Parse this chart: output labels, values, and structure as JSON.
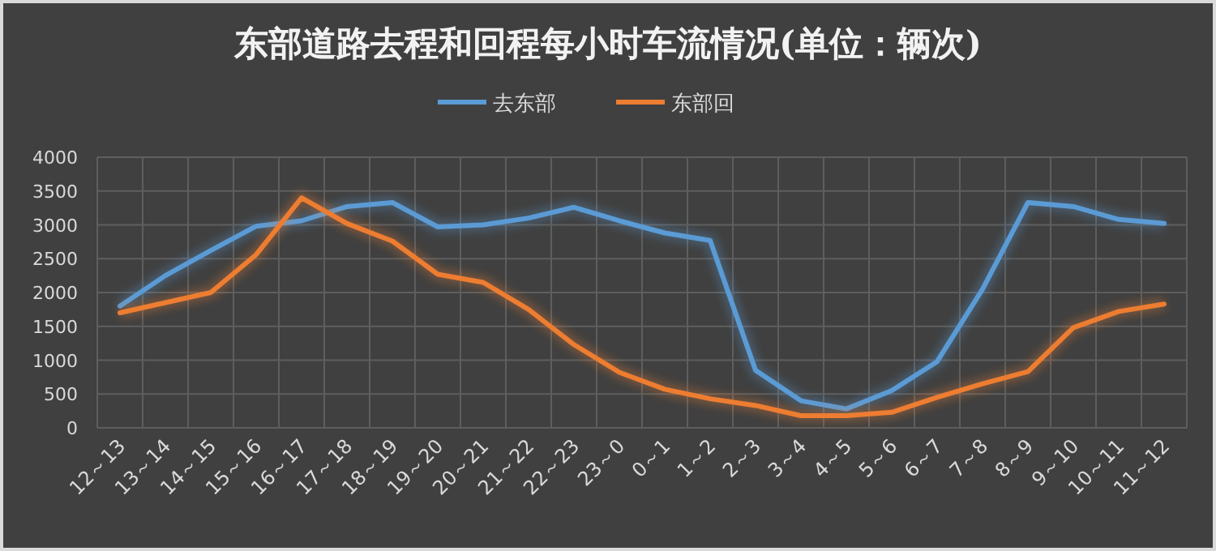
{
  "chart_data": {
    "type": "line",
    "title": "东部道路去程和回程每小时车流情况(单位：辆次)",
    "categories": [
      "12～13",
      "13～14",
      "14～15",
      "15～16",
      "16～17",
      "17～18",
      "18～19",
      "19～20",
      "20～21",
      "21～22",
      "22～23",
      "23～0",
      "0～1",
      "1～2",
      "2～3",
      "3～4",
      "4～5",
      "5～6",
      "6～7",
      "7～8",
      "8～9",
      "9～10",
      "10～11",
      "11～12"
    ],
    "series": [
      {
        "name": "去东部",
        "color": "#5b9bd5",
        "values": [
          1800,
          2250,
          2620,
          2980,
          3060,
          3270,
          3330,
          2970,
          3000,
          3100,
          3260,
          3060,
          2880,
          2770,
          850,
          400,
          280,
          550,
          980,
          2050,
          3330,
          3270,
          3080,
          3020
        ]
      },
      {
        "name": "东部回",
        "color": "#ed7d31",
        "values": [
          1700,
          1850,
          2000,
          2560,
          3400,
          3020,
          2760,
          2270,
          2150,
          1750,
          1230,
          820,
          570,
          430,
          330,
          180,
          180,
          230,
          450,
          650,
          830,
          1480,
          1720,
          1830
        ]
      }
    ],
    "ylim": [
      0,
      4000
    ],
    "yticks": [
      0,
      500,
      1000,
      1500,
      2000,
      2500,
      3000,
      3500,
      4000
    ],
    "grid": true,
    "legend": "top",
    "marker": "none",
    "line_style": "solid"
  }
}
